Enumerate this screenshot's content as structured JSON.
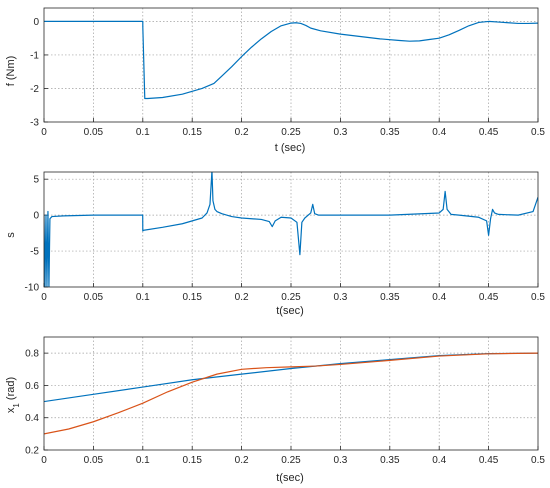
{
  "chart_data": [
    {
      "type": "line",
      "xlabel": "t (sec)",
      "ylabel": "f (Nm)",
      "xlim": [
        0,
        0.5
      ],
      "ylim": [
        -3,
        0.4
      ],
      "xticks": [
        "0",
        "0.05",
        "0.1",
        "0.15",
        "0.2",
        "0.25",
        "0.3",
        "0.35",
        "0.4",
        "0.45",
        "0.5"
      ],
      "yticks": [
        "0",
        "-1",
        "-2",
        "-3"
      ],
      "grid": true,
      "series": [
        {
          "color": "#0072BD",
          "x": [
            0,
            0.1,
            0.1,
            0.102,
            0.105,
            0.12,
            0.14,
            0.16,
            0.172,
            0.18,
            0.19,
            0.2,
            0.21,
            0.22,
            0.23,
            0.24,
            0.25,
            0.255,
            0.26,
            0.265,
            0.27,
            0.28,
            0.3,
            0.32,
            0.34,
            0.36,
            0.37,
            0.38,
            0.39,
            0.4,
            0.41,
            0.42,
            0.43,
            0.44,
            0.45,
            0.46,
            0.47,
            0.48,
            0.49,
            0.5
          ],
          "y": [
            0,
            0,
            -0.15,
            -2.3,
            -2.3,
            -2.27,
            -2.17,
            -2.0,
            -1.85,
            -1.63,
            -1.35,
            -1.05,
            -0.77,
            -0.52,
            -0.3,
            -0.13,
            -0.05,
            -0.04,
            -0.06,
            -0.12,
            -0.2,
            -0.28,
            -0.38,
            -0.45,
            -0.52,
            -0.57,
            -0.59,
            -0.58,
            -0.54,
            -0.5,
            -0.4,
            -0.27,
            -0.13,
            -0.03,
            0,
            -0.02,
            -0.04,
            -0.06,
            -0.06,
            -0.05
          ]
        }
      ]
    },
    {
      "type": "line",
      "xlabel": "t(sec)",
      "ylabel": "s",
      "xlim": [
        0,
        0.5
      ],
      "ylim": [
        -10,
        6
      ],
      "xticks": [
        "0",
        "0.05",
        "0.1",
        "0.15",
        "0.2",
        "0.25",
        "0.3",
        "0.35",
        "0.4",
        "0.45",
        "0.5"
      ],
      "yticks": [
        "5",
        "0",
        "-5",
        "-10"
      ],
      "grid": true,
      "series": [
        {
          "color": "#0072BD",
          "x": [
            0,
            0.001,
            0.002,
            0.003,
            0.004,
            0.005,
            0.006,
            0.008,
            0.02,
            0.05,
            0.08,
            0.0999,
            0.1,
            0.101,
            0.12,
            0.14,
            0.16,
            0.165,
            0.168,
            0.17,
            0.171,
            0.173,
            0.175,
            0.18,
            0.19,
            0.2,
            0.22,
            0.228,
            0.231,
            0.234,
            0.24,
            0.25,
            0.256,
            0.259,
            0.261,
            0.264,
            0.27,
            0.272,
            0.274,
            0.278,
            0.3,
            0.35,
            0.4,
            0.404,
            0.406,
            0.408,
            0.412,
            0.42,
            0.44,
            0.448,
            0.45,
            0.452,
            0.454,
            0.456,
            0.46,
            0.48,
            0.495,
            0.5
          ],
          "y": [
            0,
            -10,
            0,
            -10,
            0.5,
            -10,
            -0.5,
            -0.2,
            -0.1,
            0,
            0,
            0,
            -2.2,
            -2.1,
            -1.7,
            -1.2,
            -0.4,
            0.3,
            1.5,
            6.2,
            2.0,
            0.8,
            0.5,
            0.2,
            -0.2,
            -0.4,
            -0.6,
            -0.9,
            -1.6,
            -0.8,
            -0.3,
            -0.4,
            -1.0,
            -5.5,
            -1.0,
            -0.4,
            0.3,
            1.5,
            0.2,
            0,
            0,
            0,
            0.3,
            0.8,
            3.3,
            0.8,
            0.1,
            0,
            -0.3,
            -0.8,
            -2.8,
            -0.5,
            0.8,
            0.3,
            0.1,
            0,
            0.5,
            2.5
          ]
        }
      ]
    },
    {
      "type": "line",
      "xlabel": "t(sec)",
      "ylabel": "x_1 (rad)",
      "xlim": [
        0,
        0.5
      ],
      "ylim": [
        0.2,
        0.9
      ],
      "xticks": [
        "0",
        "0.05",
        "0.1",
        "0.15",
        "0.2",
        "0.25",
        "0.3",
        "0.35",
        "0.4",
        "0.45",
        "0.5"
      ],
      "yticks": [
        "0.8",
        "0.6",
        "0.4",
        "0.2"
      ],
      "grid": true,
      "series": [
        {
          "color": "#0072BD",
          "x": [
            0,
            0.05,
            0.1,
            0.15,
            0.2,
            0.25,
            0.3,
            0.35,
            0.4,
            0.45,
            0.5
          ],
          "y": [
            0.5,
            0.545,
            0.59,
            0.635,
            0.67,
            0.705,
            0.735,
            0.76,
            0.785,
            0.797,
            0.8
          ]
        },
        {
          "color": "#D95319",
          "x": [
            0,
            0.025,
            0.05,
            0.075,
            0.1,
            0.125,
            0.15,
            0.175,
            0.2,
            0.225,
            0.25,
            0.275,
            0.3,
            0.35,
            0.4,
            0.45,
            0.5
          ],
          "y": [
            0.3,
            0.33,
            0.375,
            0.43,
            0.49,
            0.56,
            0.62,
            0.67,
            0.7,
            0.71,
            0.715,
            0.72,
            0.73,
            0.755,
            0.782,
            0.796,
            0.8
          ]
        }
      ]
    }
  ]
}
